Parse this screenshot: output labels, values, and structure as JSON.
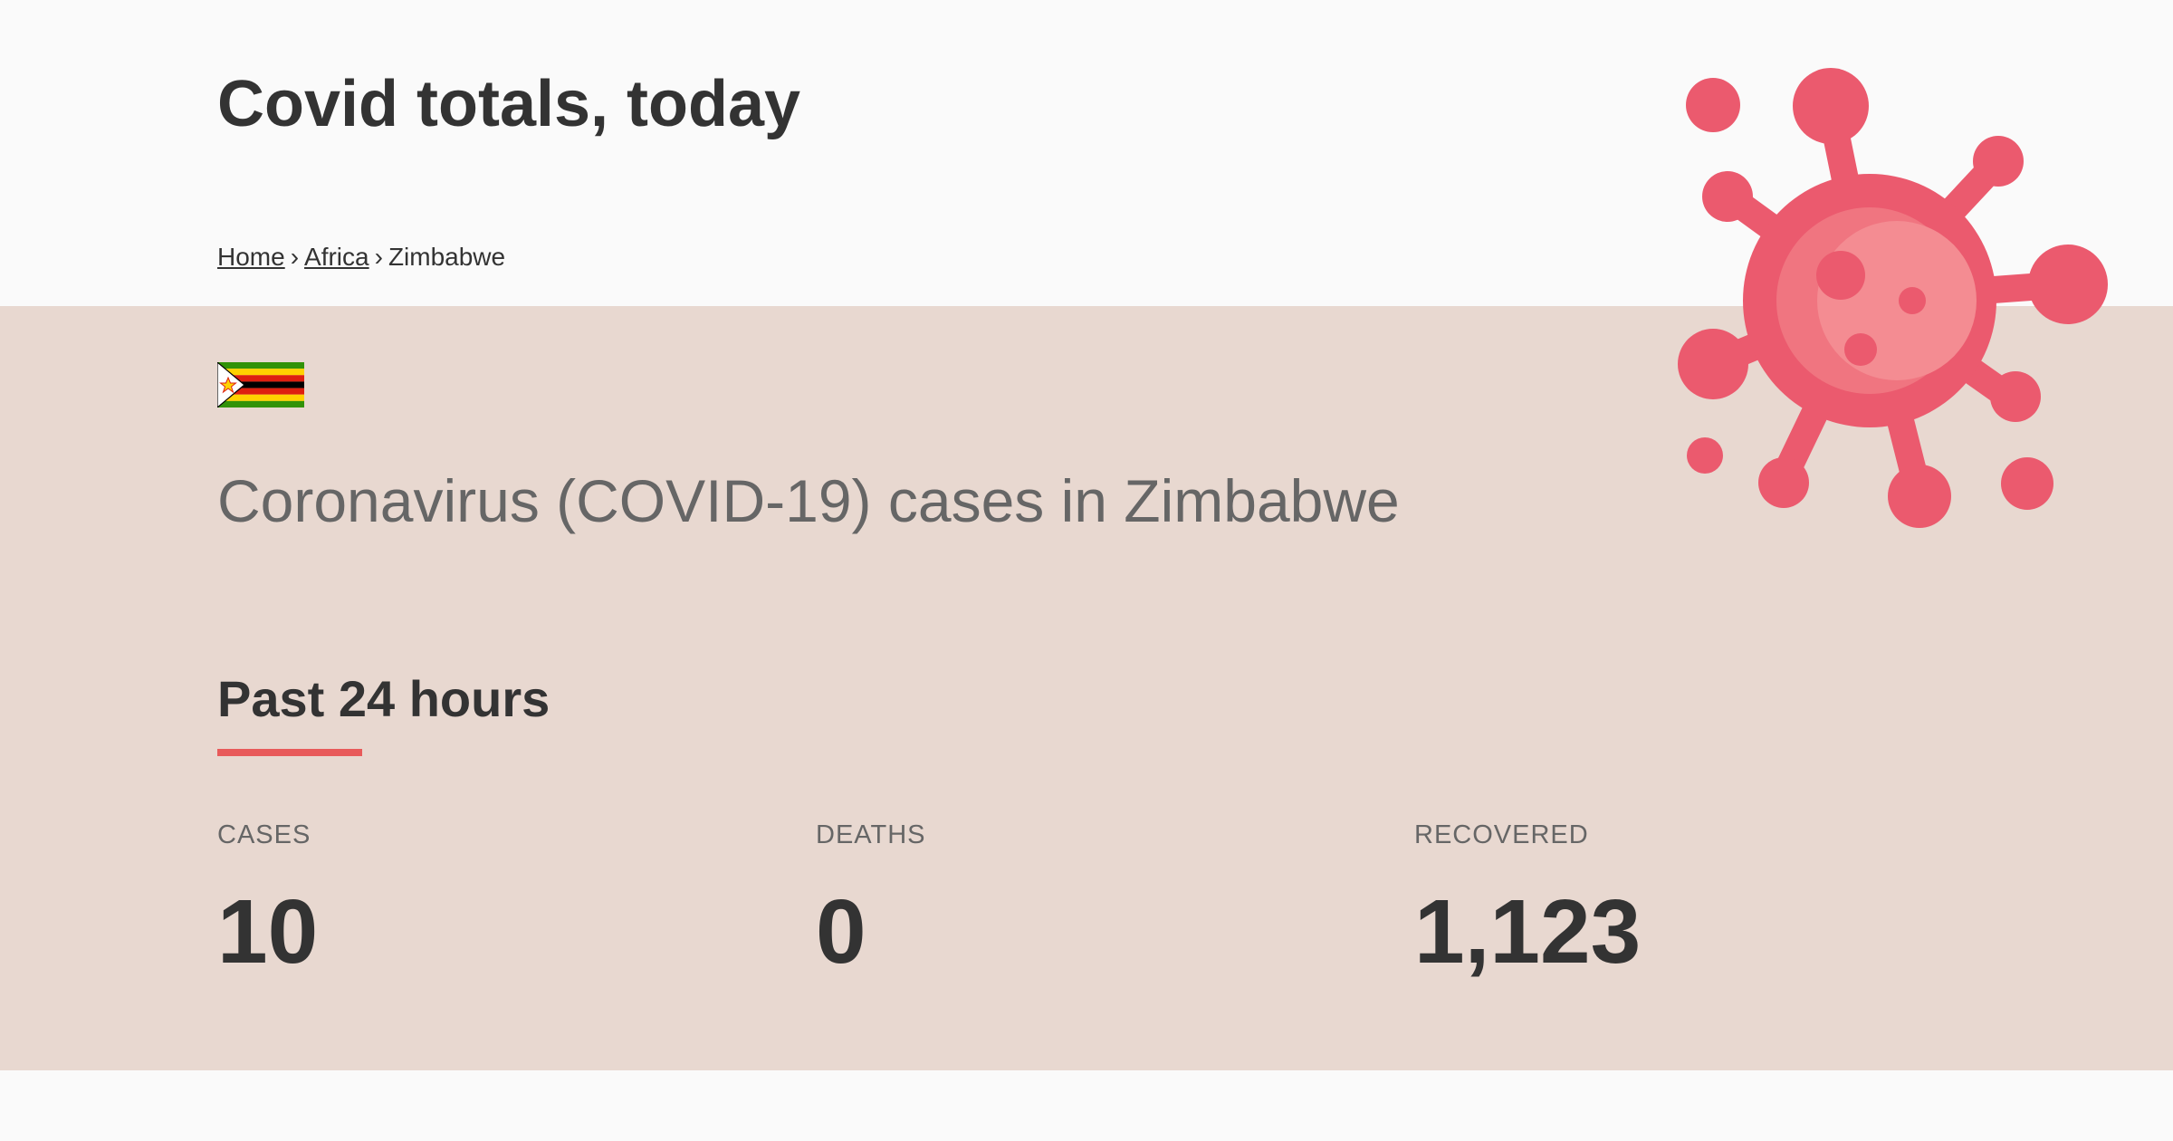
{
  "header": {
    "title": "Covid totals, today"
  },
  "breadcrumb": {
    "items": [
      {
        "label": "Home"
      },
      {
        "label": "Africa"
      },
      {
        "label": "Zimbabwe"
      }
    ],
    "separator": "›"
  },
  "country": {
    "heading": "Coronavirus (COVID-19) cases in Zimbabwe",
    "flag_icon": "zimbabwe-flag-icon"
  },
  "section": {
    "title": "Past 24 hours",
    "accent_color": "#e85a5a"
  },
  "stats": [
    {
      "label": "CASES",
      "value": "10"
    },
    {
      "label": "DEATHS",
      "value": "0"
    },
    {
      "label": "RECOVERED",
      "value": "1,123"
    }
  ],
  "decoration": {
    "virus_icon": "virus-icon",
    "virus_color": "#eb5a6e"
  }
}
